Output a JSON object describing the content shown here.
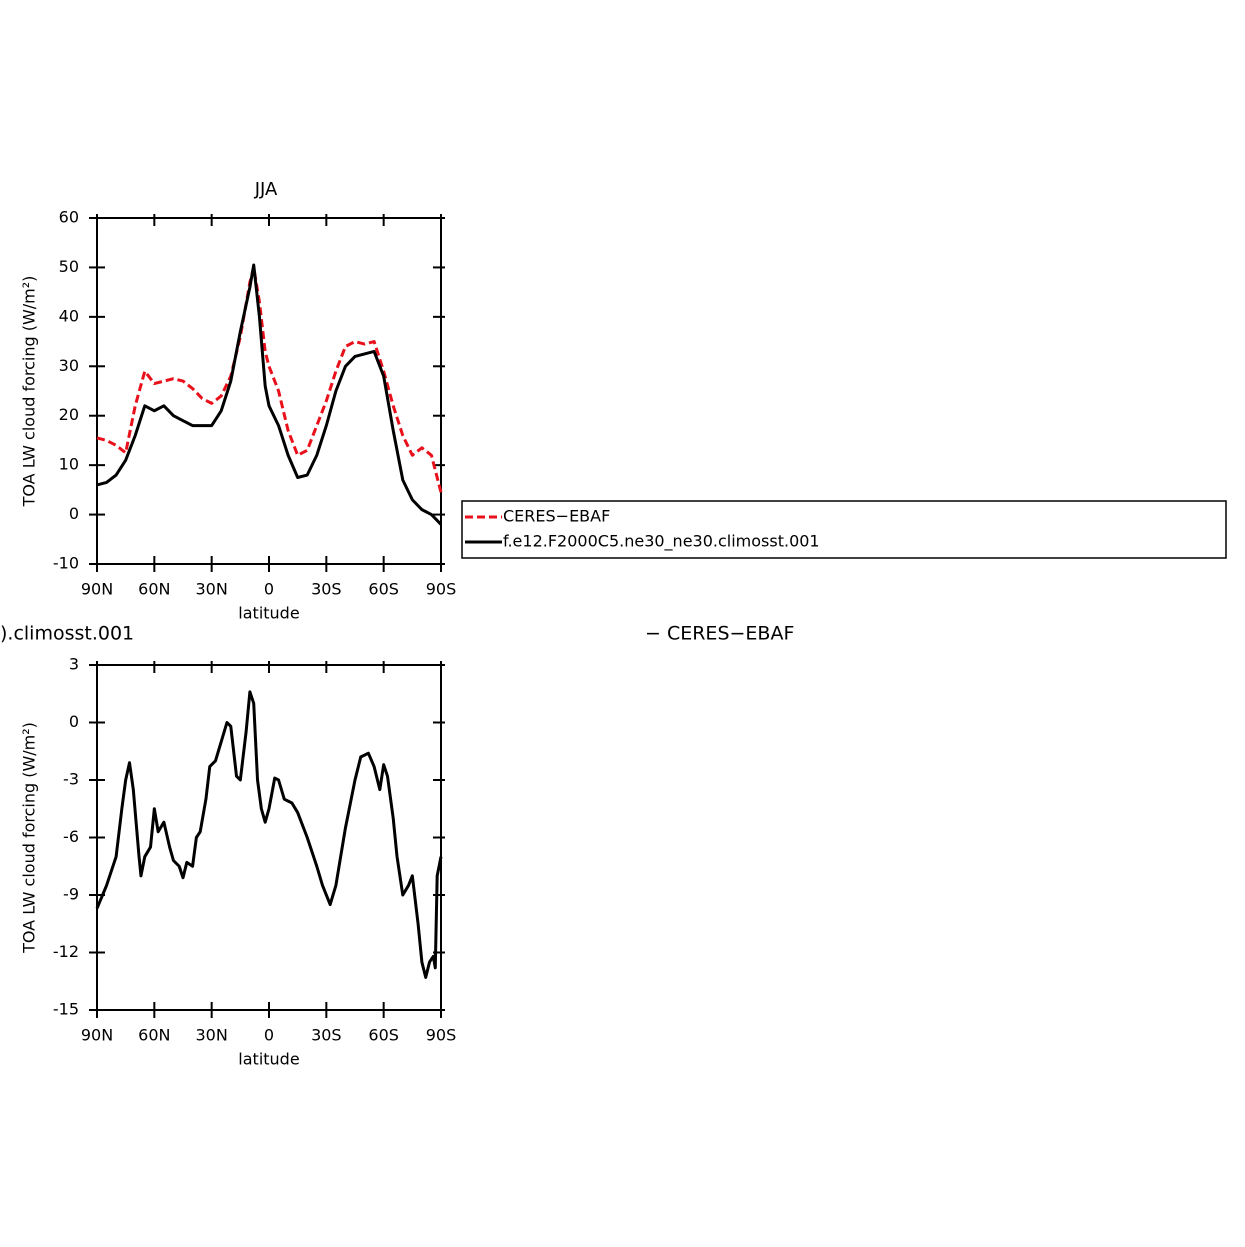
{
  "chart_data": [
    {
      "type": "line",
      "title": "JJA",
      "xlabel": "latitude",
      "ylabel": "TOA LW cloud forcing (W/m²)",
      "x": [
        90,
        85,
        80,
        75,
        70,
        65,
        60,
        55,
        50,
        45,
        40,
        35,
        30,
        25,
        20,
        15,
        10,
        8,
        5,
        2,
        0,
        -5,
        -10,
        -15,
        -20,
        -25,
        -30,
        -35,
        -40,
        -45,
        -50,
        -55,
        -60,
        -65,
        -70,
        -75,
        -80,
        -85,
        -90
      ],
      "series": [
        {
          "name": "CERES−EBAF",
          "color": "#e8101a",
          "dash": true,
          "values": [
            15.5,
            15,
            14,
            12.5,
            22,
            29,
            26.5,
            27,
            27.5,
            27,
            25.5,
            23.5,
            22.5,
            24,
            28,
            36,
            47,
            50,
            43,
            33,
            30,
            25,
            17,
            12,
            13,
            18,
            23,
            29,
            34,
            35,
            34.5,
            35,
            29,
            22,
            16,
            12,
            13.5,
            12,
            4.5
          ]
        },
        {
          "name": "f.e12.F2000C5.ne30_ne30.climosst.001",
          "color": "#000000",
          "dash": false,
          "values": [
            6,
            6.5,
            8,
            11,
            16,
            22,
            21,
            22,
            20,
            19,
            18,
            18,
            18,
            21,
            27,
            37,
            46,
            50.5,
            40,
            26,
            22,
            18,
            12,
            7.5,
            8,
            12,
            18,
            25,
            30,
            32,
            32.5,
            33,
            28,
            17,
            7,
            3,
            1,
            0,
            -2
          ]
        }
      ],
      "xlim": [
        90,
        -90
      ],
      "xticks": [
        {
          "value": 90,
          "label": "90N"
        },
        {
          "value": 60,
          "label": "60N"
        },
        {
          "value": 30,
          "label": "30N"
        },
        0,
        {
          "value": -30,
          "label": "30S"
        },
        {
          "value": -60,
          "label": "60S"
        },
        {
          "value": -90,
          "label": "90S"
        }
      ],
      "ylim": [
        -10,
        60
      ],
      "yticks": [
        -10,
        0,
        10,
        20,
        30,
        40,
        50,
        60
      ],
      "legend": "right"
    },
    {
      "type": "line",
      "xlabel": "latitude",
      "ylabel": "TOA LW cloud forcing (W/m²)",
      "annotations": [
        ").climosst.001",
        "− CERES−EBAF"
      ],
      "x": [
        90,
        85,
        80,
        77,
        75,
        73,
        71,
        68,
        67,
        65,
        62,
        60,
        58,
        55,
        52,
        50,
        47,
        45,
        43,
        40,
        38,
        36,
        33,
        31,
        28,
        25,
        22,
        20,
        17,
        15,
        12,
        10,
        8,
        6,
        4,
        2,
        0,
        -3,
        -5,
        -8,
        -12,
        -15,
        -20,
        -25,
        -28,
        -32,
        -35,
        -40,
        -45,
        -48,
        -52,
        -55,
        -58,
        -60,
        -62,
        -65,
        -67,
        -70,
        -73,
        -75,
        -78,
        -80,
        -82,
        -84,
        -86,
        -87,
        -88,
        -90
      ],
      "color": "#000000",
      "values": [
        -9.7,
        -8.5,
        -7,
        -4.5,
        -3,
        -2.1,
        -3.5,
        -7,
        -8,
        -7,
        -6.5,
        -4.5,
        -5.7,
        -5.2,
        -6.5,
        -7.2,
        -7.5,
        -8.1,
        -7.3,
        -7.5,
        -6,
        -5.7,
        -4,
        -2.3,
        -2,
        -1,
        0,
        -0.2,
        -2.8,
        -3,
        -0.5,
        1.6,
        1,
        -3,
        -4.5,
        -5.2,
        -4.5,
        -2.9,
        -3,
        -4,
        -4.2,
        -4.7,
        -6,
        -7.5,
        -8.5,
        -9.5,
        -8.5,
        -5.5,
        -3,
        -1.8,
        -1.6,
        -2.3,
        -3.5,
        -2.2,
        -2.8,
        -5,
        -7,
        -9,
        -8.5,
        -8,
        -10.5,
        -12.5,
        -13.3,
        -12.5,
        -12.2,
        -12.8,
        -8,
        -7
      ],
      "xlim": [
        90,
        -90
      ],
      "xticks": [
        {
          "value": 90,
          "label": "90N"
        },
        {
          "value": 60,
          "label": "60N"
        },
        {
          "value": 30,
          "label": "30N"
        },
        0,
        {
          "value": -30,
          "label": "30S"
        },
        {
          "value": -60,
          "label": "60S"
        },
        {
          "value": -90,
          "label": "90S"
        }
      ],
      "ylim": [
        -15,
        3
      ],
      "yticks": [
        -15,
        -12,
        -9,
        -6,
        -3,
        0,
        3
      ]
    }
  ]
}
